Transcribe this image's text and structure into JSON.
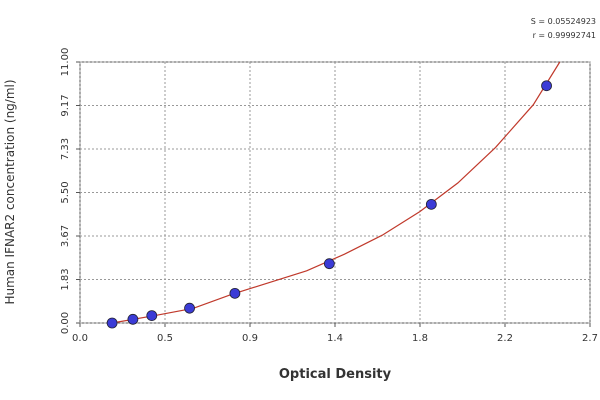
{
  "chart_data": {
    "type": "scatter",
    "xlabel": "Optical Density",
    "ylabel": "Human IFNAR2 concentration (ng/ml)",
    "annotations": [
      "S = 0.05524923",
      "r = 0.99992741"
    ],
    "xlim": [
      0,
      2.7
    ],
    "ylim": [
      0,
      11
    ],
    "xticks": [
      {
        "value": 0,
        "label": "0.0"
      },
      {
        "value": 0.45,
        "label": "0.5"
      },
      {
        "value": 0.9,
        "label": "0.9"
      },
      {
        "value": 1.35,
        "label": "1.4"
      },
      {
        "value": 1.8,
        "label": "1.8"
      },
      {
        "value": 2.25,
        "label": "2.2"
      },
      {
        "value": 2.7,
        "label": "2.7"
      }
    ],
    "yticks": [
      {
        "value": 0,
        "label": "0.00"
      },
      {
        "value": 1.833,
        "label": "1.83"
      },
      {
        "value": 3.667,
        "label": "3.67"
      },
      {
        "value": 5.5,
        "label": "5.50"
      },
      {
        "value": 7.333,
        "label": "7.33"
      },
      {
        "value": 9.167,
        "label": "9.17"
      },
      {
        "value": 11,
        "label": "11.00"
      }
    ],
    "grid": true,
    "series": [
      {
        "style": "line",
        "color": "#c0392b",
        "x": [
          0.17,
          0.4,
          0.6,
          0.8,
          1.0,
          1.2,
          1.4,
          1.6,
          1.8,
          2.0,
          2.2,
          2.4,
          2.54
        ],
        "values": [
          0,
          0.32,
          0.62,
          1.2,
          1.7,
          2.2,
          2.9,
          3.7,
          4.7,
          5.9,
          7.4,
          9.2,
          11.0
        ]
      },
      {
        "style": "points",
        "color": "#3b3bd6",
        "x": [
          0.17,
          0.28,
          0.38,
          0.58,
          0.82,
          1.32,
          1.86,
          2.47
        ],
        "values": [
          0,
          0.156,
          0.312,
          0.625,
          1.25,
          2.5,
          5,
          10
        ]
      }
    ]
  }
}
